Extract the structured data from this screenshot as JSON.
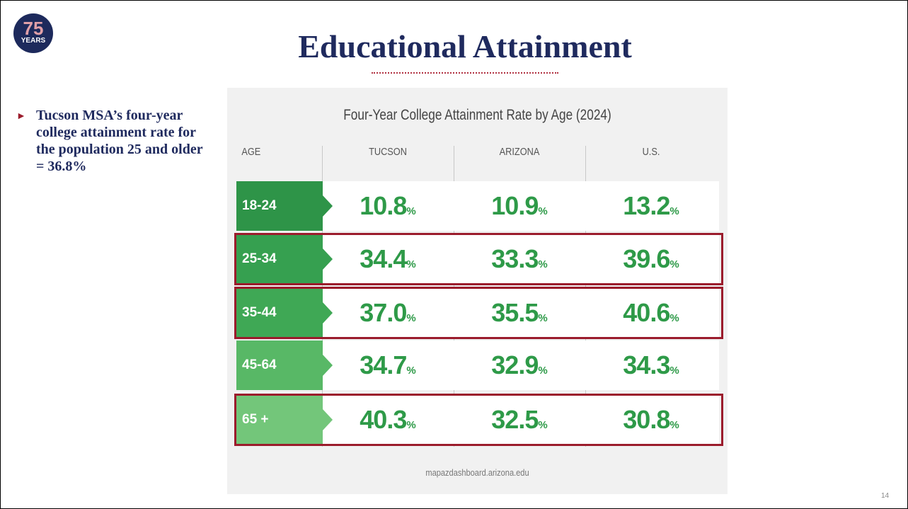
{
  "logo": {
    "number": "75",
    "label": "YEARS"
  },
  "header": {
    "title": "Educational Attainment"
  },
  "bullet": "Tucson MSA’s four-year college attainment rate for the population 25 and older = 36.8%",
  "table": {
    "title": "Four-Year College Attainment Rate by Age (2024)",
    "columns": [
      "AGE",
      "TUCSON",
      "ARIZONA",
      "U.S."
    ],
    "rows": [
      [
        "18-24",
        "10.8%",
        "10.9%",
        "13.2%"
      ],
      [
        "25-34",
        "34.4%",
        "33.3%",
        "39.6%"
      ],
      [
        "35-44",
        "37.0%",
        "35.5%",
        "40.6%"
      ],
      [
        "45-64",
        "34.7%",
        "32.9%",
        "34.3%"
      ],
      [
        "65 +",
        "40.3%",
        "32.5%",
        "30.8%"
      ]
    ],
    "source": "mapazdashboard.arizona.edu"
  },
  "page_number": "14"
}
